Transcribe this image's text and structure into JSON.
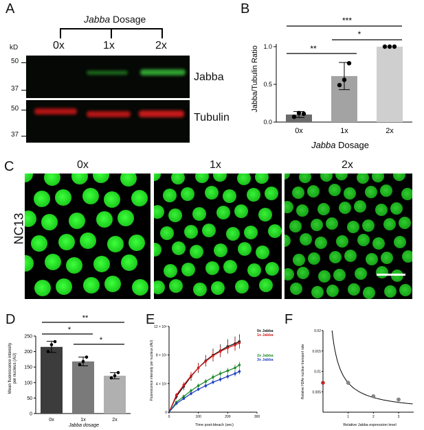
{
  "panels": {
    "A": {
      "letter": "A",
      "header": "Jabba Dosage",
      "header_italic": "Jabba",
      "header_rest": " Dosage",
      "kd_label": "kD",
      "lanes": [
        "0x",
        "1x",
        "2x"
      ],
      "ladder_top": [
        "50",
        "37"
      ],
      "ladder_bottom": [
        "50",
        "37"
      ],
      "band_labels": [
        "Jabba",
        "Tubulin"
      ]
    },
    "B": {
      "letter": "B",
      "ylabel": "Jabba/Tubulin Ratio",
      "xlabel_italic": "Jabba",
      "xlabel_rest": " Dosage",
      "sig_top": "***",
      "sig_mid": "*",
      "sig_low": "**"
    },
    "C": {
      "letter": "C",
      "stage": "NC13",
      "columns": [
        "0x",
        "1x",
        "2x"
      ]
    },
    "D": {
      "letter": "D",
      "ylabel_line1": "Mean fluorescence intensity",
      "ylabel_line2": "per nucleus (AU)",
      "xlabel": "Jabba dosage",
      "sig_top": "**",
      "sig_mid": "*",
      "sig_low": "*"
    },
    "E": {
      "letter": "E",
      "ylabel": "Fluorescence intensity per nucleus (AU)",
      "xlabel": "Time post-bleach (sec)",
      "ytick_exp": "10⁵"
    },
    "F": {
      "letter": "F",
      "ylabel": "Relative H2Av nuclear transport rate",
      "xlabel": "Relative Jabba expression level"
    }
  },
  "chart_data": [
    {
      "id": "B",
      "type": "bar",
      "categories": [
        "0x",
        "1x",
        "2x"
      ],
      "values": [
        0.1,
        0.61,
        1.0
      ],
      "errors": [
        0.04,
        0.18,
        0.0
      ],
      "points": [
        [
          0.07,
          0.12,
          0.11
        ],
        [
          0.49,
          0.56,
          0.78
        ],
        [
          1.0,
          1.0,
          1.0
        ]
      ],
      "colors": [
        "#6b6b6b",
        "#a3a3a3",
        "#cfcfcf"
      ],
      "ylabel": "Jabba/Tubulin Ratio",
      "xlabel": "Jabba Dosage",
      "ylim": [
        0,
        1.0
      ],
      "yticks": [
        "0.0",
        "0.5",
        "1.0"
      ]
    },
    {
      "id": "D",
      "type": "bar",
      "categories": [
        "0x",
        "1x",
        "2x"
      ],
      "values": [
        215,
        168,
        122
      ],
      "errors": [
        18,
        14,
        10
      ],
      "points": [
        [
          200,
          222,
          232
        ],
        [
          158,
          168,
          182
        ],
        [
          115,
          122,
          132
        ]
      ],
      "colors": [
        "#3c3c3c",
        "#7a7a7a",
        "#b0b0b0"
      ],
      "ylabel": "Mean fluorescence intensity per nucleus (AU)",
      "xlabel": "Jabba dosage",
      "ylim": [
        0,
        250
      ],
      "yticks": [
        "0",
        "50",
        "100",
        "150",
        "200",
        "250"
      ]
    },
    {
      "id": "E",
      "type": "line",
      "xlabel": "Time post-bleach (sec)",
      "ylabel": "Fluorescence intensity per nucleus (AU)",
      "xlim": [
        0,
        300
      ],
      "xticks": [
        "0",
        "100",
        "200",
        "300"
      ],
      "ylim": [
        0,
        120000
      ],
      "yticks": [
        "0",
        "4",
        "8",
        "12"
      ],
      "legend": "top-right",
      "series": [
        {
          "name": "0x Jabba",
          "color": "#111111",
          "x": [
            25,
            50,
            75,
            100,
            125,
            150,
            175,
            200,
            225,
            240
          ],
          "y": [
            22000,
            36000,
            50000,
            62000,
            72000,
            80000,
            86000,
            92000,
            96000,
            99000
          ],
          "err": [
            4000,
            5000,
            6000,
            7000,
            8000,
            9000,
            9000,
            10000,
            10000,
            10000
          ]
        },
        {
          "name": "1x Jabba",
          "color": "#d42020",
          "x": [
            25,
            50,
            75,
            100,
            125,
            150,
            175,
            200,
            225,
            240
          ],
          "y": [
            24000,
            38000,
            51000,
            62000,
            71000,
            79000,
            85000,
            90000,
            94000,
            97000
          ],
          "err": [
            3000,
            4000,
            5000,
            6000,
            6000,
            7000,
            7000,
            8000,
            8000,
            8000
          ]
        },
        {
          "name": "2x Jabba",
          "color": "#1e8a2a",
          "x": [
            25,
            50,
            75,
            100,
            125,
            150,
            175,
            200,
            225,
            240
          ],
          "y": [
            14000,
            22000,
            30000,
            37000,
            43000,
            49000,
            54000,
            58000,
            62000,
            66000
          ],
          "err": [
            2000,
            2500,
            3000,
            3000,
            3500,
            4000,
            4000,
            4000,
            4500,
            4500
          ]
        },
        {
          "name": "3x Jabba",
          "color": "#1f3fbf",
          "x": [
            25,
            50,
            75,
            100,
            125,
            150,
            175,
            200,
            225,
            240
          ],
          "y": [
            12000,
            19000,
            26000,
            32000,
            37000,
            42000,
            46000,
            50000,
            54000,
            57000
          ],
          "err": [
            1500,
            2000,
            2500,
            2500,
            3000,
            3000,
            3500,
            3500,
            4000,
            4000
          ]
        }
      ]
    },
    {
      "id": "F",
      "type": "scatter",
      "xlabel": "Relative Jabba expression level",
      "ylabel": "Relative H2Av nuclear transport rate",
      "xlim": [
        0,
        3.6
      ],
      "xticks": [
        "1",
        "2",
        "3"
      ],
      "ylim": [
        0,
        0.02
      ],
      "yticks": [
        "0.005",
        "0.01",
        "0.015",
        "0.02"
      ],
      "points": [
        {
          "x": 0.0,
          "y": 0.0072,
          "color": "#d42020"
        },
        {
          "x": 1.0,
          "y": 0.0072,
          "color": "#888888"
        },
        {
          "x": 2.0,
          "y": 0.0039,
          "color": "#888888"
        },
        {
          "x": 3.0,
          "y": 0.0031,
          "color": "#888888"
        }
      ],
      "fit": "a/x"
    }
  ]
}
